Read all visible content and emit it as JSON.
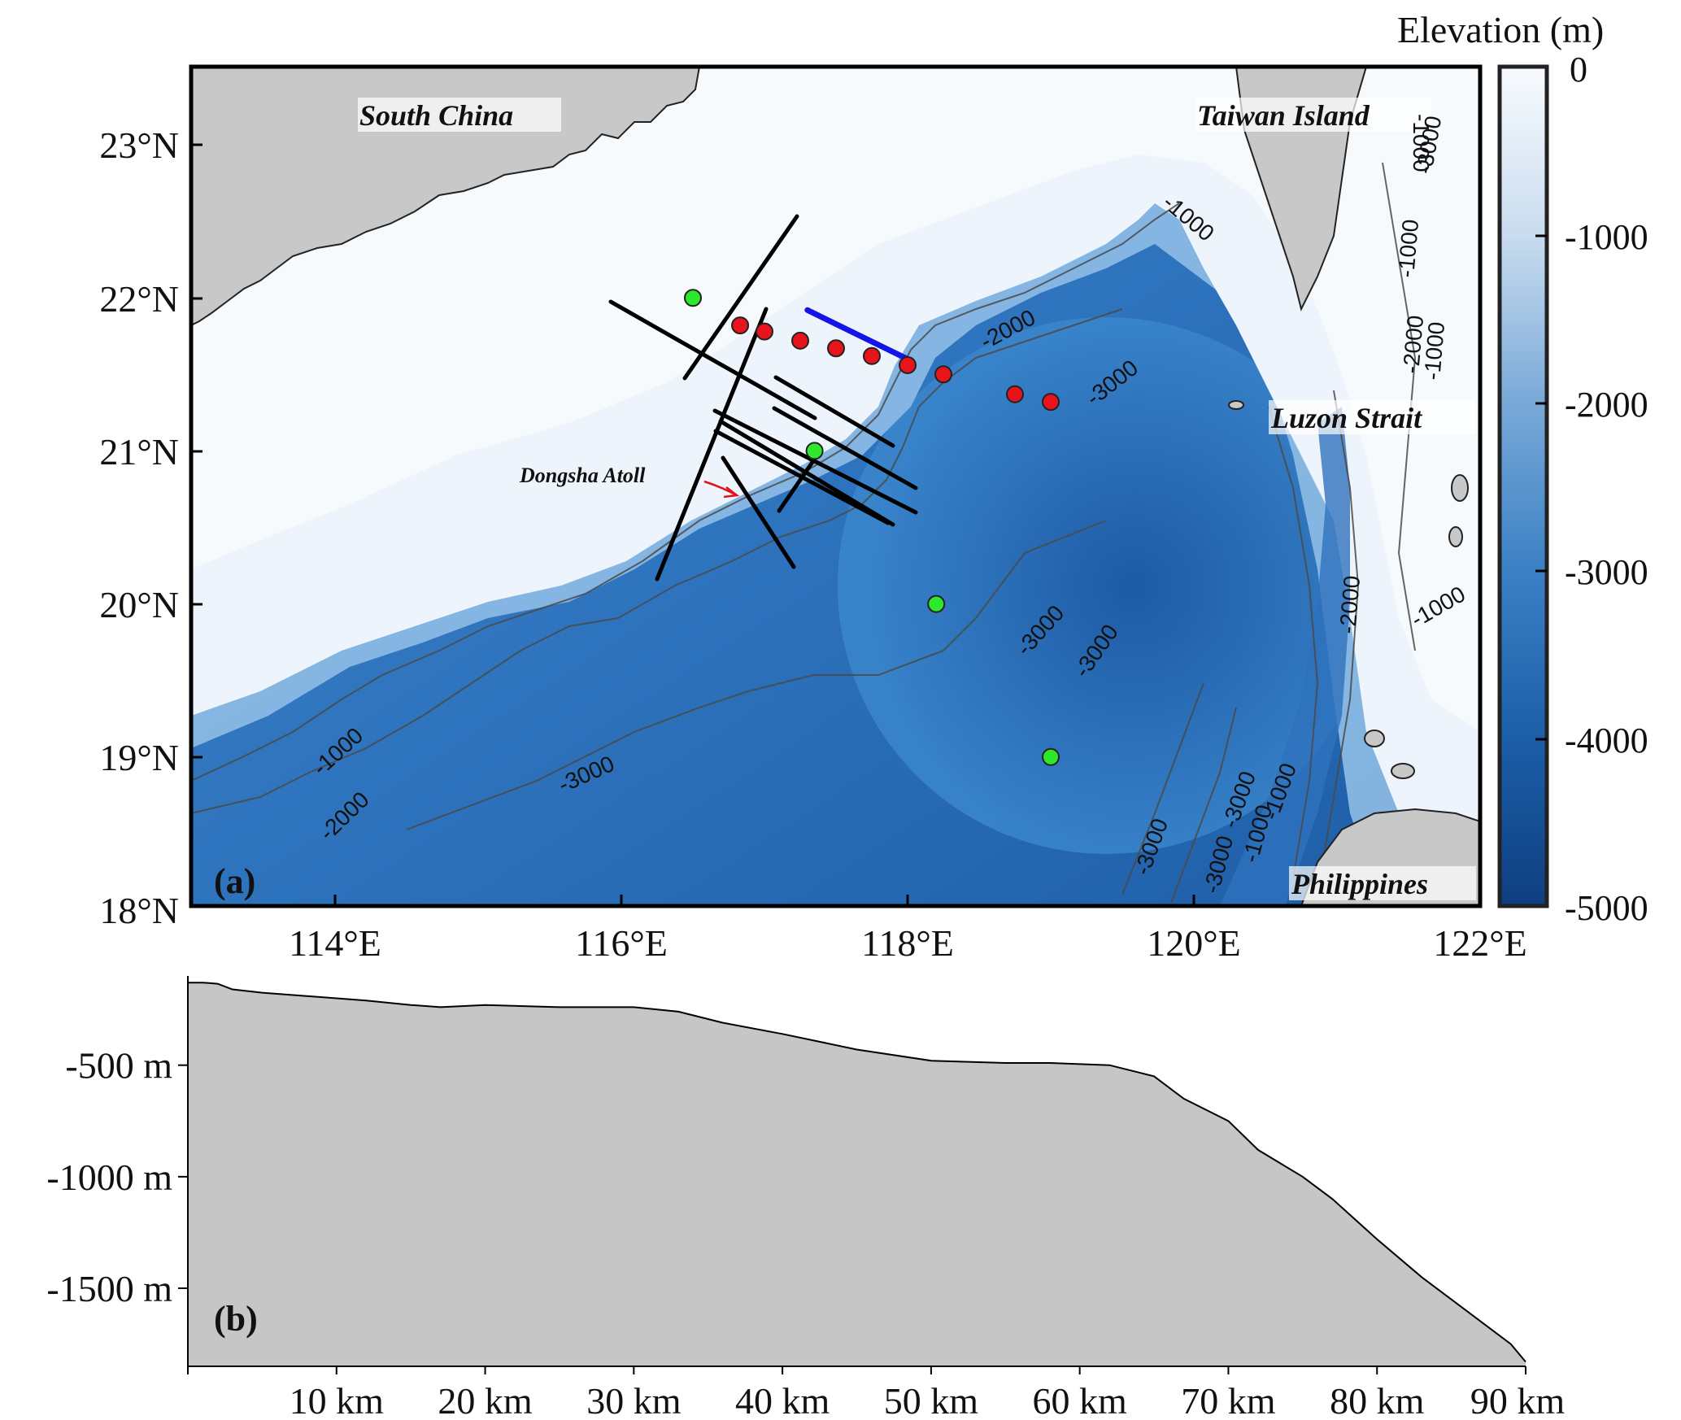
{
  "map": {
    "panel_label": "(a)",
    "lon_ticks": [
      "114°E",
      "116°E",
      "118°E",
      "120°E",
      "122°E"
    ],
    "lat_ticks": [
      "23°N",
      "22°N",
      "21°N",
      "20°N",
      "19°N",
      "18°N"
    ],
    "places": {
      "south_china": "South China",
      "taiwan": "Taiwan Island",
      "luzon": "Luzon Strait",
      "philippines": "Philippines",
      "dongsha": "Dongsha Atoll"
    },
    "contour_labels": [
      "-1000",
      "-2000",
      "-3000",
      "-1000",
      "-2000",
      "-3000",
      "-3000",
      "-3000",
      "-1000",
      "-3000",
      "-1000",
      "-2000",
      "-1000",
      "-2000",
      "-1000",
      "-3000",
      "-3000",
      "-1000",
      "-3000",
      "-1000"
    ],
    "colors": {
      "land": "#c8c8c8",
      "shelf": "#f4f8fc",
      "deep": "#0f4d96",
      "red_station": "#e8141c",
      "green_station": "#2ee82e",
      "blue_line": "#1414e6",
      "survey_line": "#000000"
    },
    "red_stations_lonlat": [
      [
        116.83,
        21.82
      ],
      [
        117.0,
        21.78
      ],
      [
        117.25,
        21.72
      ],
      [
        117.5,
        21.67
      ],
      [
        117.75,
        21.62
      ],
      [
        118.0,
        21.56
      ],
      [
        118.25,
        21.5
      ],
      [
        118.75,
        21.37
      ],
      [
        119.0,
        21.32
      ]
    ],
    "green_stations_lonlat": [
      [
        116.5,
        22.0
      ],
      [
        117.35,
        21.0
      ],
      [
        118.2,
        20.0
      ],
      [
        119.0,
        19.0
      ]
    ],
    "blue_line_lonlat": [
      [
        117.3,
        21.92
      ],
      [
        118.0,
        21.6
      ]
    ]
  },
  "colorbar": {
    "title": "Elevation (m)",
    "ticks": [
      "0",
      "-1000",
      "-2000",
      "-3000",
      "-4000",
      "-5000"
    ],
    "range": [
      0,
      -5000
    ]
  },
  "profile": {
    "panel_label": "(b)",
    "y_ticks": [
      "-500 m",
      "-1000 m",
      "-1500 m"
    ],
    "x_ticks": [
      "10 km",
      "20 km",
      "30 km",
      "40 km",
      "50 km",
      "60 km",
      "70 km",
      "80 km",
      "90 km"
    ]
  },
  "chart_data": {
    "type": "area",
    "xlabel": "",
    "ylabel": "",
    "x_unit": "km",
    "y_unit": "m",
    "xlim": [
      0,
      90
    ],
    "ylim": [
      -1850,
      -100
    ],
    "x": [
      0,
      1,
      2,
      3,
      5,
      8,
      12,
      15,
      17,
      20,
      25,
      30,
      33,
      36,
      40,
      45,
      50,
      55,
      58,
      62,
      65,
      67,
      70,
      72,
      75,
      77,
      80,
      83,
      86,
      89,
      90
    ],
    "y": [
      -130,
      -130,
      -135,
      -160,
      -175,
      -190,
      -210,
      -230,
      -240,
      -230,
      -240,
      -240,
      -260,
      -310,
      -360,
      -430,
      -480,
      -490,
      -490,
      -500,
      -550,
      -650,
      -750,
      -880,
      -1000,
      -1100,
      -1280,
      -1450,
      -1600,
      -1750,
      -1830
    ]
  }
}
